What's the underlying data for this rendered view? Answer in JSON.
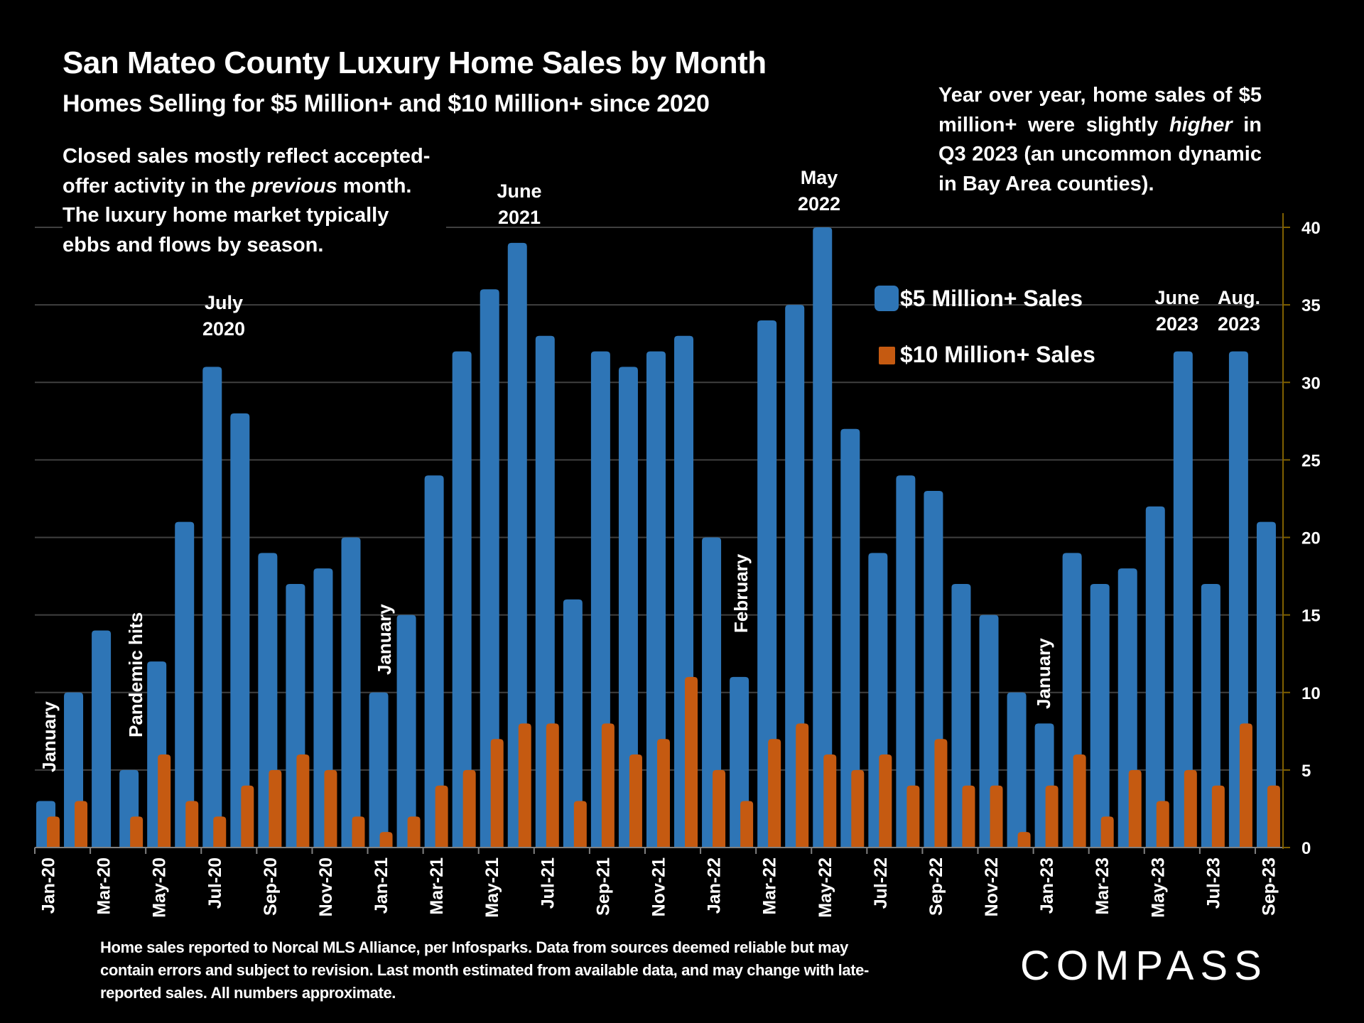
{
  "header": {
    "title": "San Mateo County Luxury Home Sales by Month",
    "subtitle": "Homes Selling for $5 Million+ and $10 Million+ since 2020"
  },
  "notes": {
    "left": [
      {
        "text": "Closed sales mostly reflect accepted-",
        "italic": false
      },
      {
        "text": "offer activity in the ",
        "italic_word": "previous",
        "after": " month."
      },
      {
        "text": "The luxury home market typically",
        "italic": false
      },
      {
        "text": "ebbs and flows by season.",
        "italic": false
      }
    ],
    "right": {
      "before": "Year over year, home sales of $5 million+ were slightly ",
      "italic_word": "higher",
      "after": " in Q3 2023 (an uncommon dynamic in Bay Area counties)."
    }
  },
  "footer": {
    "source": "Home sales reported to Norcal MLS Alliance, per Infosparks. Data from sources deemed reliable but may contain errors and subject to revision.  Last month estimated from available data, and may change with late-reported sales. All numbers approximate.",
    "logo": "COMPASS"
  },
  "colors": {
    "background": "#000000",
    "series_5m": "#2E75B6",
    "series_10m": "#C55A11",
    "gridline": "#404040",
    "right_axis": "#7F6000"
  },
  "chart_data": {
    "type": "bar",
    "title": "San Mateo County Luxury Home Sales by Month",
    "subtitle": "Homes Selling for $5 Million+ and $10 Million+ since 2020",
    "xlabel": "",
    "ylabel": "",
    "ylim": [
      0,
      40
    ],
    "y_ticks": [
      0,
      5,
      10,
      15,
      20,
      25,
      30,
      35,
      40
    ],
    "y_axis_side": "right",
    "grid": true,
    "legend_position": "upper-right-center",
    "categories": [
      "Jan-20",
      "Feb-20",
      "Mar-20",
      "Apr-20",
      "May-20",
      "Jun-20",
      "Jul-20",
      "Aug-20",
      "Sep-20",
      "Oct-20",
      "Nov-20",
      "Dec-20",
      "Jan-21",
      "Feb-21",
      "Mar-21",
      "Apr-21",
      "May-21",
      "Jun-21",
      "Jul-21",
      "Aug-21",
      "Sep-21",
      "Oct-21",
      "Nov-21",
      "Dec-21",
      "Jan-22",
      "Feb-22",
      "Mar-22",
      "Apr-22",
      "May-22",
      "Jun-22",
      "Jul-22",
      "Aug-22",
      "Sep-22",
      "Oct-22",
      "Nov-22",
      "Dec-22",
      "Jan-23",
      "Feb-23",
      "Mar-23",
      "Apr-23",
      "May-23",
      "Jun-23",
      "Jul-23",
      "Aug-23",
      "Sep-23"
    ],
    "x_tick_labels_shown": [
      "Jan-20",
      "Mar-20",
      "May-20",
      "Jul-20",
      "Sep-20",
      "Nov-20",
      "Jan-21",
      "Mar-21",
      "May-21",
      "Jul-21",
      "Sep-21",
      "Nov-21",
      "Jan-22",
      "Mar-22",
      "May-22",
      "Jul-22",
      "Sep-22",
      "Nov-22",
      "Jan-23",
      "Mar-23",
      "May-23",
      "Jul-23",
      "Sep-23"
    ],
    "series": [
      {
        "name": "$5 Million+ Sales",
        "values": [
          3,
          10,
          14,
          5,
          12,
          21,
          31,
          28,
          19,
          17,
          18,
          20,
          10,
          15,
          24,
          32,
          36,
          39,
          33,
          16,
          32,
          31,
          32,
          33,
          20,
          11,
          34,
          35,
          40,
          27,
          19,
          24,
          23,
          17,
          15,
          10,
          8,
          19,
          17,
          18,
          22,
          32,
          17,
          32,
          21
        ]
      },
      {
        "name": "$10 Million+ Sales",
        "values": [
          2,
          3,
          0,
          2,
          6,
          3,
          2,
          4,
          5,
          6,
          5,
          2,
          1,
          2,
          4,
          5,
          7,
          8,
          8,
          3,
          8,
          6,
          7,
          11,
          5,
          3,
          7,
          8,
          6,
          5,
          6,
          4,
          7,
          4,
          4,
          1,
          4,
          6,
          2,
          5,
          3,
          5,
          4,
          8,
          4
        ]
      }
    ],
    "annotations": [
      {
        "text": [
          "July",
          "2020"
        ],
        "index": 6,
        "orientation": "horizontal"
      },
      {
        "text": [
          "June",
          "2021"
        ],
        "index": 17,
        "orientation": "horizontal"
      },
      {
        "text": [
          "May",
          "2022"
        ],
        "index": 28,
        "orientation": "horizontal"
      },
      {
        "text": [
          "June",
          "2023"
        ],
        "index": 41,
        "orientation": "horizontal"
      },
      {
        "text": [
          "Aug.",
          "2023"
        ],
        "index": 43,
        "orientation": "horizontal"
      },
      {
        "text": [
          "January"
        ],
        "index": 0,
        "orientation": "vertical"
      },
      {
        "text": [
          "Pandemic hits"
        ],
        "index": 3,
        "orientation": "vertical"
      },
      {
        "text": [
          "January"
        ],
        "index": 12,
        "orientation": "vertical"
      },
      {
        "text": [
          "February"
        ],
        "index": 25,
        "orientation": "vertical"
      },
      {
        "text": [
          "January"
        ],
        "index": 36,
        "orientation": "vertical"
      }
    ]
  }
}
